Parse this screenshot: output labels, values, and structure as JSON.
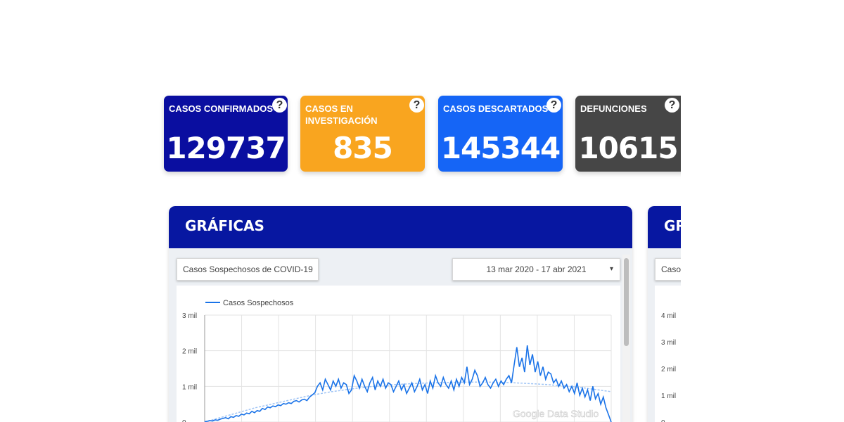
{
  "cards": [
    {
      "title": "CASOS CONFIRMADOS",
      "value": "129737",
      "color": "#0a0ea0"
    },
    {
      "title": "CASOS EN INVESTIGACIÓN",
      "value": "835",
      "color": "#f9a51f"
    },
    {
      "title": "CASOS DESCARTADOS",
      "value": "145344",
      "color": "#1565f6"
    },
    {
      "title": "DEFUNCIONES",
      "value": "10615",
      "color": "#464646"
    }
  ],
  "help_glyph": "?",
  "panels": [
    {
      "title": "GRÁFICAS"
    },
    {
      "title": "GR"
    }
  ],
  "metric_selector": {
    "value": "Casos Sospechosos de COVID-19"
  },
  "date_range": {
    "value": "13 mar 2020 - 17 abr 2021",
    "icon": "dropdown-arrow-icon",
    "arrow": "▾"
  },
  "second_selector": {
    "value": "Caso"
  },
  "watermark": "Google Data Studio",
  "chart_data": [
    {
      "type": "line",
      "legend": "top-left",
      "grid": true,
      "ylim": [
        0,
        3000
      ],
      "y_ticks": [
        "0",
        "1 mil",
        "2 mil",
        "3 mil"
      ],
      "series": [
        {
          "name": "Casos Sospechosos",
          "color": "#1a73e8",
          "values": [
            10,
            20,
            40,
            30,
            60,
            50,
            80,
            100,
            120,
            90,
            150,
            130,
            180,
            160,
            220,
            200,
            250,
            230,
            300,
            260,
            320,
            300,
            380,
            350,
            420,
            400,
            450,
            430,
            480,
            460,
            520,
            500,
            540,
            520,
            580,
            600,
            560,
            620,
            640,
            600,
            700,
            760,
            820,
            1000,
            1100,
            900,
            1200,
            1050,
            900,
            1150,
            1000,
            1200,
            950,
            1100,
            1050,
            800,
            900,
            1300,
            1150,
            950,
            1200,
            1000,
            850,
            1100,
            1250,
            900,
            1150,
            1000,
            1200,
            950,
            1100,
            1050,
            850,
            1000,
            1150,
            900,
            1050,
            800,
            950,
            1100,
            850,
            1000,
            1200,
            900,
            1050,
            800,
            1150,
            950,
            1300,
            1100,
            1000,
            1250,
            1050,
            950,
            1150,
            900,
            1200,
            1000,
            1250,
            1100,
            1550,
            1050,
            1200,
            1450,
            1300,
            1000,
            1100,
            1250,
            1050,
            950,
            1100,
            1200,
            1000,
            1150,
            1050,
            1200,
            1300,
            1100,
            1600,
            2100,
            1550,
            1800,
            1400,
            2150,
            1600,
            1900,
            1400,
            1700,
            1300,
            1550,
            1200,
            1400,
            1350,
            1100,
            1200,
            1000,
            1150,
            950,
            1050,
            850,
            1000,
            800,
            1100,
            750,
            950,
            700,
            900,
            600,
            1000,
            650,
            800,
            500,
            700,
            400,
            200,
            0
          ]
        },
        {
          "name": "trend",
          "color": "#9fc4f5",
          "values": [
            0,
            100,
            200,
            300,
            400,
            480,
            560,
            640,
            720,
            790,
            850,
            900,
            950,
            990,
            1020,
            1050,
            1070,
            1090,
            1100,
            1110,
            1115,
            1120,
            1120,
            1115,
            1105,
            1090,
            1070,
            1050,
            1020,
            990,
            950,
            900,
            850
          ]
        }
      ]
    },
    {
      "type": "line",
      "ylim": [
        0,
        4000
      ],
      "y_ticks": [
        "0",
        "1 mil",
        "2 mil",
        "3 mil",
        "4 mil"
      ]
    }
  ]
}
